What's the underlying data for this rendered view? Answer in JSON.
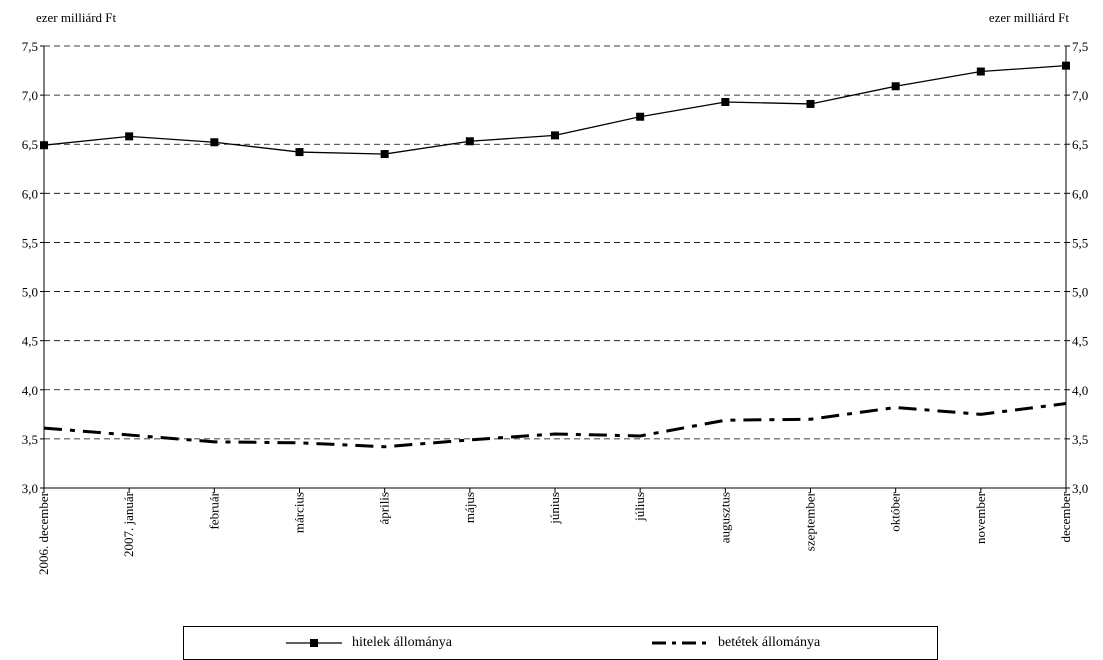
{
  "chart_data": {
    "type": "line",
    "unit_label_left": "ezer milliárd Ft",
    "unit_label_right": "ezer milliárd Ft",
    "categories": [
      "2006. december",
      "2007. január",
      "február",
      "március",
      "április",
      "május",
      "június",
      "július",
      "augusztus",
      "szeptember",
      "október",
      "november",
      "december"
    ],
    "ylim": [
      3.0,
      7.5
    ],
    "yticks": [
      "3,0",
      "3,5",
      "4,0",
      "4,5",
      "5,0",
      "5,5",
      "6,0",
      "6,5",
      "7,0",
      "7,5"
    ],
    "grid": "dashed horizontal",
    "series": [
      {
        "name": "hitelek állománya",
        "style": "solid with square markers",
        "color": "#000000",
        "values": [
          6.49,
          6.58,
          6.52,
          6.42,
          6.4,
          6.53,
          6.59,
          6.78,
          6.93,
          6.91,
          7.09,
          7.24,
          7.3
        ]
      },
      {
        "name": "betétek állománya",
        "style": "dash-dot",
        "color": "#000000",
        "values": [
          3.61,
          3.54,
          3.47,
          3.46,
          3.42,
          3.49,
          3.55,
          3.53,
          3.69,
          3.7,
          3.82,
          3.75,
          3.86
        ]
      }
    ],
    "legend_position": "bottom"
  }
}
